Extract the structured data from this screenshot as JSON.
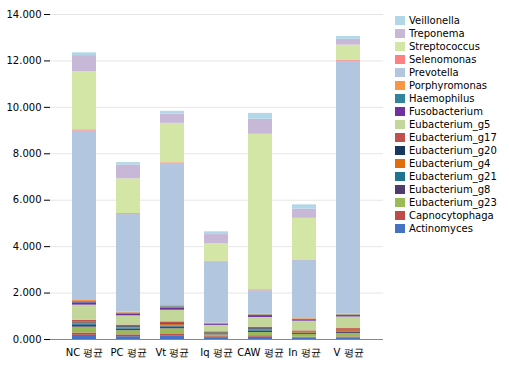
{
  "chart_data": {
    "type": "bar",
    "stacked": true,
    "grid": true,
    "legend": "right",
    "categories": [
      "NC 평균",
      "PC 평균",
      "Vt 평균",
      "Iq 평균",
      "CAW 평균",
      "In 평균",
      "V 평균"
    ],
    "series": [
      {
        "name": "Actinomyces",
        "color": "#4472C4",
        "values": [
          0.18,
          0.12,
          0.14,
          0.08,
          0.1,
          0.06,
          0.07
        ]
      },
      {
        "name": "Capnocytophaga",
        "color": "#BE4B48",
        "values": [
          0.1,
          0.08,
          0.1,
          0.04,
          0.06,
          0.04,
          0.04
        ]
      },
      {
        "name": "Eubacterium_g23",
        "color": "#9BBB59",
        "values": [
          0.25,
          0.18,
          0.22,
          0.08,
          0.14,
          0.12,
          0.15
        ]
      },
      {
        "name": "Eubacterium_g8",
        "color": "#4F3B6D",
        "values": [
          0.08,
          0.07,
          0.08,
          0.04,
          0.06,
          0.04,
          0.04
        ]
      },
      {
        "name": "Eubacterium_g21",
        "color": "#1F7391",
        "values": [
          0.04,
          0.03,
          0.04,
          0.02,
          0.03,
          0.02,
          0.03
        ]
      },
      {
        "name": "Eubacterium_g4",
        "color": "#E26B0A",
        "values": [
          0.06,
          0.05,
          0.06,
          0.02,
          0.05,
          0.03,
          0.05
        ]
      },
      {
        "name": "Eubacterium_g20",
        "color": "#17375E",
        "values": [
          0.04,
          0.03,
          0.04,
          0.02,
          0.03,
          0.02,
          0.03
        ]
      },
      {
        "name": "Eubacterium_g17",
        "color": "#C0504D",
        "values": [
          0.08,
          0.06,
          0.08,
          0.03,
          0.06,
          0.04,
          0.06
        ]
      },
      {
        "name": "Eubacterium_g5",
        "color": "#C4D79B",
        "values": [
          0.65,
          0.4,
          0.5,
          0.28,
          0.42,
          0.42,
          0.5
        ]
      },
      {
        "name": "Fusobacterium",
        "color": "#7030A0",
        "values": [
          0.1,
          0.08,
          0.1,
          0.05,
          0.08,
          0.06,
          0.06
        ]
      },
      {
        "name": "Haemophilus",
        "color": "#31849B",
        "values": [
          0.05,
          0.04,
          0.05,
          0.02,
          0.03,
          0.02,
          0.03
        ]
      },
      {
        "name": "Porphyromonas",
        "color": "#F79646",
        "values": [
          0.05,
          0.04,
          0.05,
          0.02,
          0.04,
          0.03,
          0.03
        ]
      },
      {
        "name": "Prevotella",
        "color": "#B3C6E0",
        "values": [
          7.3,
          4.2,
          6.1,
          2.65,
          1.0,
          2.5,
          10.9
        ]
      },
      {
        "name": "Selenomonas",
        "color": "#FF8080",
        "values": [
          0.05,
          0.04,
          0.05,
          0.02,
          0.04,
          0.02,
          0.04
        ]
      },
      {
        "name": "Streptococcus",
        "color": "#D4E6A5",
        "values": [
          2.5,
          1.5,
          1.7,
          0.75,
          6.7,
          1.8,
          0.65
        ]
      },
      {
        "name": "Treponema",
        "color": "#C8B8D8",
        "values": [
          0.7,
          0.6,
          0.4,
          0.4,
          0.65,
          0.4,
          0.25
        ]
      },
      {
        "name": "Veillonella",
        "color": "#B2D8E8",
        "values": [
          0.12,
          0.1,
          0.12,
          0.12,
          0.25,
          0.18,
          0.12
        ]
      }
    ],
    "ylim": [
      0,
      14
    ],
    "yticks": [
      {
        "value": 0,
        "label": "0.000"
      },
      {
        "value": 2,
        "label": "2.000"
      },
      {
        "value": 4,
        "label": "4.000"
      },
      {
        "value": 6,
        "label": "6.000"
      },
      {
        "value": 8,
        "label": "8.000"
      },
      {
        "value": 10,
        "label": "10.000"
      },
      {
        "value": 12,
        "label": "12.000"
      },
      {
        "value": 14,
        "label": "14.000"
      }
    ]
  }
}
